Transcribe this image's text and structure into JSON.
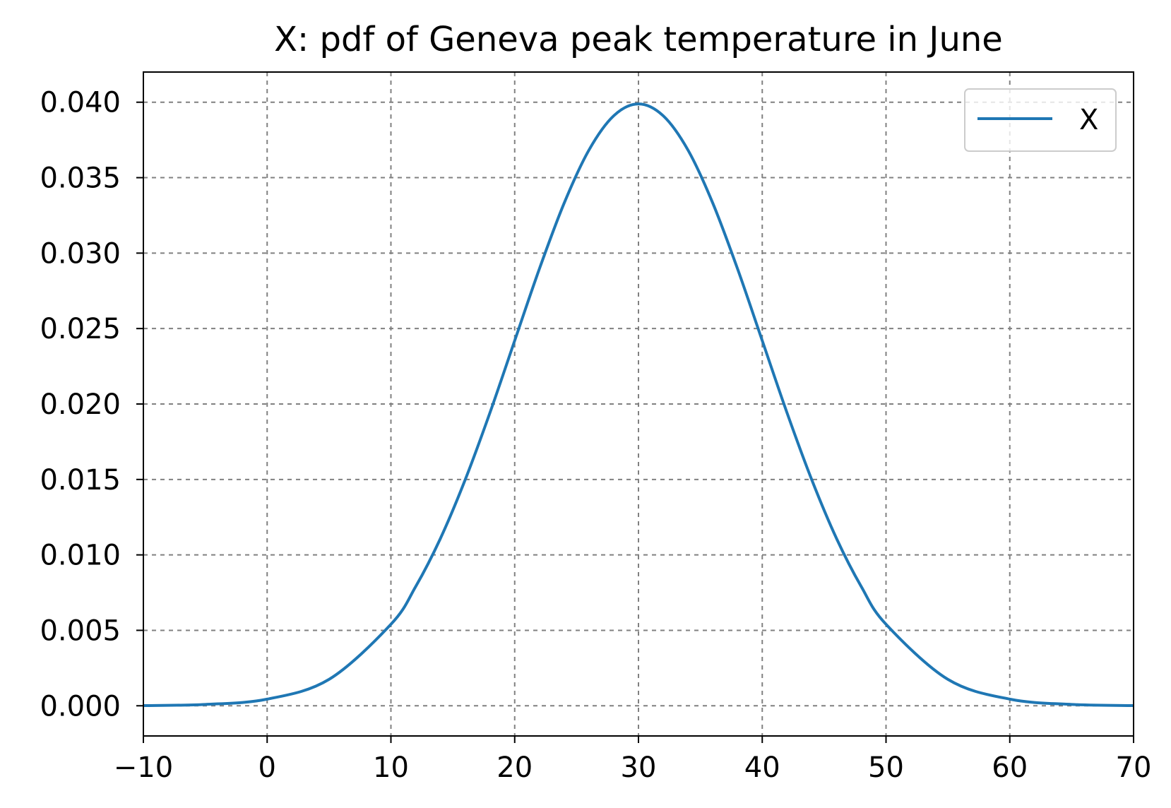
{
  "chart_data": {
    "type": "line",
    "title": "X: pdf of Geneva peak temperature in June",
    "xlabel": "",
    "ylabel": "",
    "xlim": [
      -10,
      70
    ],
    "ylim": [
      -0.002,
      0.042
    ],
    "xticks": [
      -10,
      0,
      10,
      20,
      30,
      40,
      50,
      60,
      70
    ],
    "xtick_labels": [
      "−10",
      "0",
      "10",
      "20",
      "30",
      "40",
      "50",
      "60",
      "70"
    ],
    "yticks": [
      0.0,
      0.005,
      0.01,
      0.015,
      0.02,
      0.025,
      0.03,
      0.035,
      0.04
    ],
    "ytick_labels": [
      "0.000",
      "0.005",
      "0.010",
      "0.015",
      "0.020",
      "0.025",
      "0.030",
      "0.035",
      "0.040"
    ],
    "grid": true,
    "legend_position": "top-right",
    "series": [
      {
        "name": "X",
        "color": "#1f77b4",
        "x": [
          -10,
          -5,
          0,
          5,
          10,
          12,
          14,
          16,
          18,
          20,
          22,
          24,
          26,
          28,
          30,
          32,
          34,
          36,
          38,
          40,
          42,
          44,
          46,
          48,
          50,
          55,
          60,
          65,
          70
        ],
        "y": [
          1e-05,
          9e-05,
          0.00044,
          0.00175,
          0.0054,
          0.0079,
          0.01109,
          0.01498,
          0.01942,
          0.0242,
          0.02897,
          0.03332,
          0.03683,
          0.0391,
          0.03989,
          0.0391,
          0.03683,
          0.03332,
          0.02897,
          0.0242,
          0.01942,
          0.01498,
          0.01109,
          0.0079,
          0.0054,
          0.00175,
          0.00044,
          9e-05,
          1e-05
        ]
      }
    ]
  }
}
